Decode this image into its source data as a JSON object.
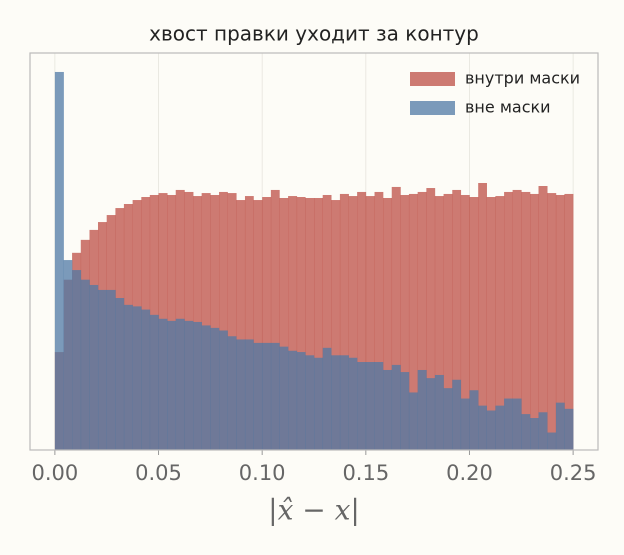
{
  "chart_data": {
    "type": "histogram",
    "title": "хвост правки уходит за контур",
    "x_label": "|x̂ − x|",
    "bins": [
      0,
      0.0042,
      0.0083,
      0.0125,
      0.0167,
      0.0208,
      0.025,
      0.0292,
      0.0333,
      0.0375,
      0.0417,
      0.0458,
      0.05,
      0.0542,
      0.0583,
      0.0625,
      0.0667,
      0.0708,
      0.075,
      0.0792,
      0.0833,
      0.0875,
      0.0917,
      0.0958,
      0.1,
      0.1042,
      0.1083,
      0.1125,
      0.1167,
      0.1208,
      0.125,
      0.1292,
      0.1333,
      0.1375,
      0.1417,
      0.1458,
      0.15,
      0.1542,
      0.1583,
      0.1625,
      0.1667,
      0.1708,
      0.175,
      0.1792,
      0.1833,
      0.1875,
      0.1917,
      0.1958,
      0.2,
      0.2042,
      0.2083,
      0.2125,
      0.2167,
      0.2208,
      0.225,
      0.2292,
      0.2333,
      0.2375,
      0.2417,
      0.2458,
      0.25
    ],
    "series": [
      {
        "name": "внутри маски",
        "color": "#bc4f45",
        "values": [
          9.7,
          52,
          97,
          131,
          165,
          198,
          233,
          274,
          301,
          330,
          354,
          371,
          388,
          371,
          417,
          398,
          362,
          388,
          371,
          398,
          388,
          330,
          362,
          330,
          354,
          417,
          346,
          362,
          354,
          346,
          346,
          371,
          330,
          380,
          362,
          398,
          362,
          398,
          346,
          447,
          371,
          380,
          398,
          436,
          362,
          380,
          417,
          371,
          354,
          490,
          354,
          362,
          398,
          417,
          398,
          380,
          457,
          388,
          371,
          380
        ]
      },
      {
        "name": "вне маски",
        "color": "#4f7aa6",
        "values": [
          6440,
          82,
          65,
          52,
          46,
          41,
          41,
          34,
          29,
          28,
          26,
          23,
          21,
          20,
          21,
          20,
          19.5,
          18,
          17,
          16,
          14,
          13,
          13,
          12,
          12,
          12,
          11,
          10,
          9.7,
          9,
          8.5,
          10.7,
          9,
          9,
          8.5,
          7.7,
          7.7,
          7.7,
          6.4,
          7.2,
          6.1,
          3.8,
          6.4,
          5.3,
          5.7,
          4.2,
          5.1,
          3.3,
          4,
          2.8,
          2.5,
          2.8,
          3.3,
          3.3,
          2.3,
          2.1,
          2.4,
          1.5,
          3,
          2.6
        ]
      }
    ],
    "xlim": [
      -0.012,
      0.262
    ],
    "xticks": [
      {
        "value": 0,
        "label": "0.00"
      },
      {
        "value": 0.05,
        "label": "0.05"
      },
      {
        "value": 0.1,
        "label": "0.10"
      },
      {
        "value": 0.15,
        "label": "0.15"
      },
      {
        "value": 0.2,
        "label": "0.20"
      },
      {
        "value": 0.25,
        "label": "0.25"
      }
    ],
    "ylim": [
      1,
      10000
    ],
    "yscale": "log",
    "grid": true,
    "legend": "upper right"
  }
}
